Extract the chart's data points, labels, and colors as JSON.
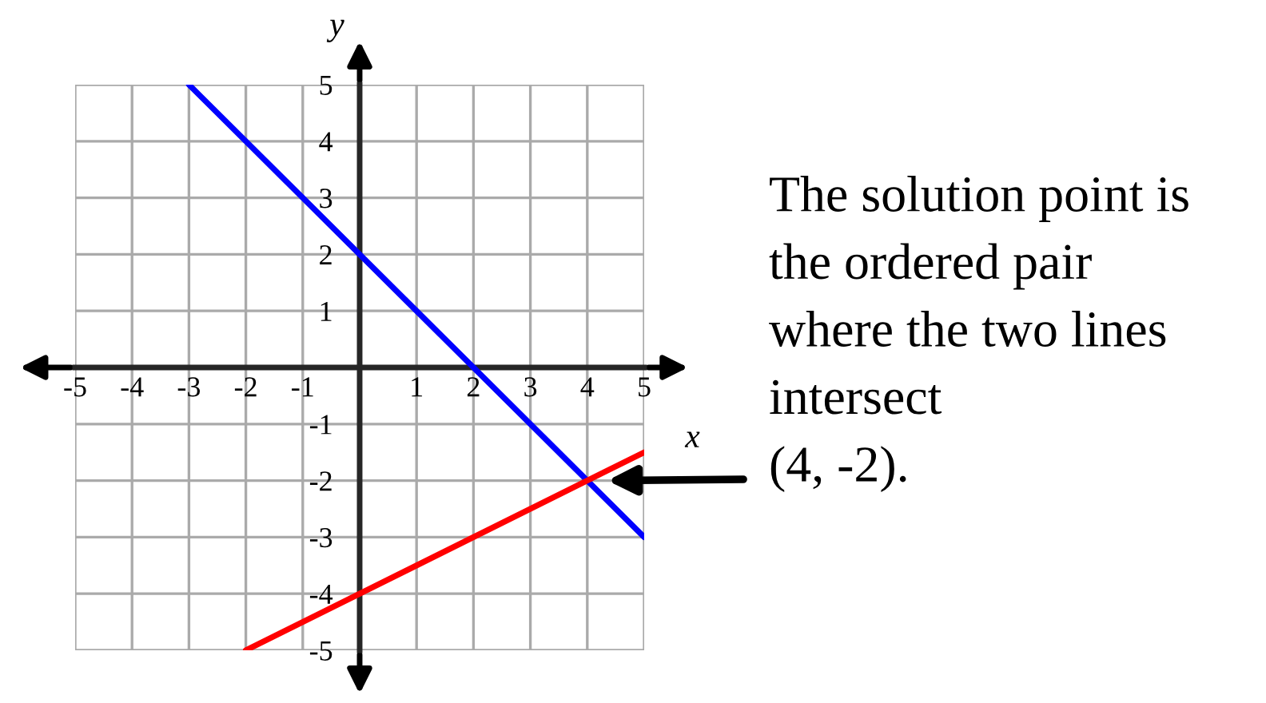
{
  "chart_data": {
    "type": "line",
    "xlabel": "x",
    "ylabel": "y",
    "xlim": [
      -5,
      5
    ],
    "ylim": [
      -5,
      5
    ],
    "xticks": [
      {
        "value": -5,
        "label": "-5"
      },
      {
        "value": -4,
        "label": "-4"
      },
      {
        "value": -3,
        "label": "-3"
      },
      {
        "value": -2,
        "label": "-2"
      },
      {
        "value": -1,
        "label": "-1"
      },
      1,
      2,
      3,
      4,
      5
    ],
    "yticks": [
      {
        "value": -5,
        "label": "-5"
      },
      {
        "value": -4,
        "label": "-4"
      },
      {
        "value": -3,
        "label": "-3"
      },
      {
        "value": -2,
        "label": "-2"
      },
      {
        "value": -1,
        "label": "-1"
      },
      1,
      2,
      3,
      4,
      5
    ],
    "grid": true,
    "legend": false,
    "series": [
      {
        "color": "#0000ff",
        "x": [
          -3,
          5
        ],
        "values": [
          5,
          -3
        ]
      },
      {
        "color": "#ff0000",
        "x": [
          -2,
          5
        ],
        "values": [
          -5,
          -1.5
        ]
      }
    ],
    "annotations": [
      "The solution point is\nthe ordered pair\nwhere the two lines\nintersect\n(4, -2)."
    ]
  }
}
